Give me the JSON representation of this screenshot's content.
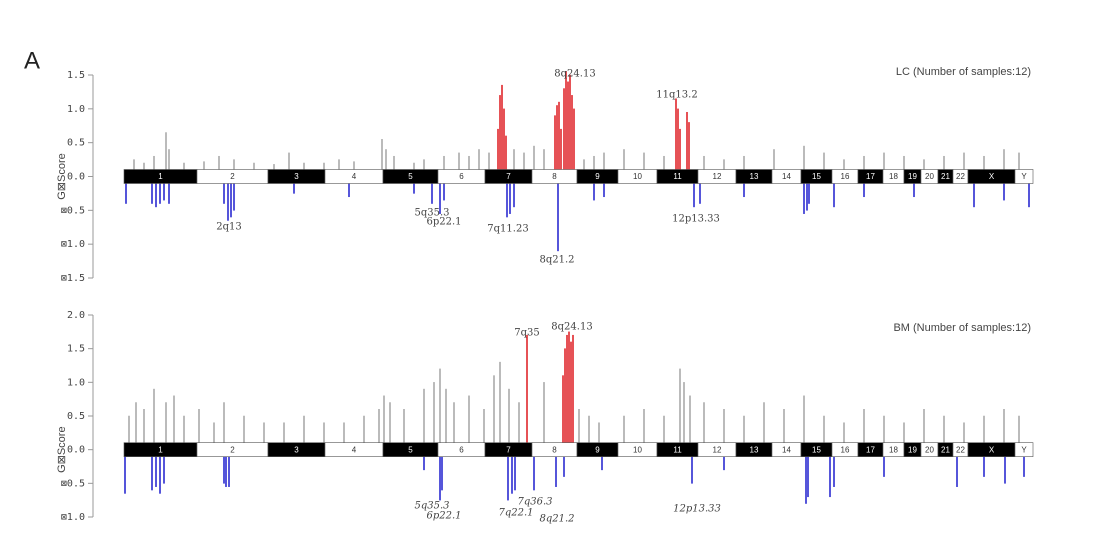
{
  "panel_label": "A",
  "chart_data": [
    {
      "type": "genome-bar",
      "title": "LC (Number of samples:12)",
      "y_label": "G⊠Score",
      "ylim": [
        -1.5,
        1.5
      ],
      "yticks": [
        {
          "value": 1.5,
          "label": "1.5"
        },
        {
          "value": 1,
          "label": "1.0"
        },
        {
          "value": 0.5,
          "label": "0.5"
        },
        {
          "value": 0,
          "label": "0.0"
        },
        {
          "value": -0.5,
          "label": "⊠0.5"
        },
        {
          "value": -1,
          "label": "⊠1.0"
        },
        {
          "value": -1.5,
          "label": "⊠1.5"
        }
      ],
      "xlim": [
        0,
        909
      ],
      "chromosomes": [
        "1",
        "2",
        "3",
        "4",
        "5",
        "6",
        "7",
        "8",
        "9",
        "10",
        "11",
        "12",
        "13",
        "14",
        "15",
        "16",
        "17",
        "18",
        "19",
        "20",
        "21",
        "22",
        "X",
        "Y"
      ],
      "chromosome_edges": [
        0,
        73,
        144,
        201,
        259,
        314,
        361,
        408,
        453,
        494,
        533,
        574,
        612,
        648,
        677,
        708,
        734,
        759,
        780,
        797,
        814,
        829,
        844,
        891,
        909
      ],
      "annotations": [
        "8q24.13",
        "11q13.2",
        "2q13",
        "5q35.3",
        "6p22.1",
        "7q11.23",
        "8q21.2",
        "12p13.33"
      ],
      "series": [
        {
          "color": "#aaaaaa",
          "x": [
            10,
            20,
            30,
            42,
            45,
            60,
            80,
            95,
            110,
            130,
            150,
            165,
            180,
            200,
            215,
            230,
            258,
            262,
            270,
            290,
            300,
            320,
            335,
            345,
            355,
            365,
            390,
            400,
            410,
            420,
            460,
            470,
            480,
            500,
            520,
            540,
            580,
            600,
            620,
            650,
            680,
            700,
            720,
            740,
            760,
            780,
            800,
            820,
            840,
            860,
            880,
            895
          ],
          "values": [
            0.15,
            0.1,
            0.2,
            0.55,
            0.3,
            0.1,
            0.12,
            0.2,
            0.15,
            0.1,
            0.08,
            0.25,
            0.1,
            0.1,
            0.15,
            0.12,
            0.45,
            0.3,
            0.2,
            0.1,
            0.15,
            0.2,
            0.25,
            0.2,
            0.3,
            0.25,
            0.3,
            0.25,
            0.35,
            0.3,
            0.15,
            0.2,
            0.25,
            0.3,
            0.25,
            0.2,
            0.2,
            0.15,
            0.2,
            0.3,
            0.35,
            0.25,
            0.15,
            0.2,
            0.25,
            0.2,
            0.15,
            0.2,
            0.25,
            0.2,
            0.3,
            0.25
          ]
        },
        {
          "color": "#e0262b",
          "x": [
            374,
            376,
            378,
            380,
            382,
            431,
            433,
            435,
            437,
            440,
            442,
            444,
            446,
            448,
            450,
            552,
            554,
            556,
            563,
            565
          ],
          "values": [
            0.6,
            1.1,
            1.25,
            0.9,
            0.5,
            0.8,
            0.95,
            1.0,
            0.6,
            1.2,
            1.45,
            1.3,
            1.4,
            1.1,
            0.9,
            1.05,
            0.9,
            0.6,
            0.85,
            0.7
          ]
        },
        {
          "color": "#2b2bd0",
          "x": [
            2,
            28,
            32,
            36,
            40,
            45,
            100,
            104,
            107,
            110,
            170,
            225,
            290,
            308,
            316,
            320,
            383,
            386,
            390,
            434,
            470,
            480,
            570,
            576,
            620,
            680,
            683,
            685,
            710,
            740,
            790,
            850,
            880,
            905
          ],
          "values": [
            -0.3,
            -0.3,
            -0.35,
            -0.3,
            -0.25,
            -0.3,
            -0.3,
            -0.55,
            -0.5,
            -0.4,
            -0.15,
            -0.2,
            -0.15,
            -0.3,
            -0.45,
            -0.25,
            -0.5,
            -0.45,
            -0.35,
            -1.0,
            -0.25,
            -0.2,
            -0.35,
            -0.3,
            -0.2,
            -0.45,
            -0.4,
            -0.3,
            -0.35,
            -0.2,
            -0.2,
            -0.35,
            -0.25,
            -0.35
          ]
        }
      ]
    },
    {
      "type": "genome-bar",
      "title": "BM (Number of samples:12)",
      "y_label": "G⊠Score",
      "ylim": [
        -1,
        2
      ],
      "yticks": [
        {
          "value": 2,
          "label": "2.0"
        },
        {
          "value": 1.5,
          "label": "1.5"
        },
        {
          "value": 1,
          "label": "1.0"
        },
        {
          "value": 0.5,
          "label": "0.5"
        },
        {
          "value": 0,
          "label": "0.0"
        },
        {
          "value": -0.5,
          "label": "⊠0.5"
        },
        {
          "value": -1,
          "label": "⊠1.0"
        }
      ],
      "xlim": [
        0,
        909
      ],
      "chromosomes": [
        "1",
        "2",
        "3",
        "4",
        "5",
        "6",
        "7",
        "8",
        "9",
        "10",
        "11",
        "12",
        "13",
        "14",
        "15",
        "16",
        "17",
        "18",
        "19",
        "20",
        "21",
        "22",
        "X",
        "Y"
      ],
      "chromosome_edges": [
        0,
        73,
        144,
        201,
        259,
        314,
        361,
        408,
        453,
        494,
        533,
        574,
        612,
        648,
        677,
        708,
        734,
        759,
        780,
        797,
        814,
        829,
        844,
        891,
        909
      ],
      "annotations": [
        "7q35",
        "8q24.13",
        "5q35.3",
        "6p22.1",
        "7q36.3",
        "7q22.1",
        "8q21.2",
        "12p13.33"
      ],
      "series": [
        {
          "color": "#aaaaaa",
          "x": [
            5,
            12,
            20,
            30,
            42,
            50,
            60,
            75,
            90,
            100,
            120,
            140,
            160,
            180,
            200,
            220,
            240,
            255,
            260,
            266,
            280,
            300,
            310,
            316,
            322,
            330,
            345,
            360,
            370,
            376,
            385,
            395,
            420,
            455,
            465,
            475,
            500,
            520,
            540,
            556,
            560,
            566,
            580,
            600,
            620,
            640,
            660,
            680,
            700,
            720,
            740,
            760,
            780,
            800,
            820,
            840,
            860,
            880,
            895
          ],
          "values": [
            0.4,
            0.6,
            0.5,
            0.8,
            0.6,
            0.7,
            0.4,
            0.5,
            0.3,
            0.6,
            0.4,
            0.3,
            0.3,
            0.4,
            0.3,
            0.3,
            0.4,
            0.5,
            0.7,
            0.6,
            0.5,
            0.8,
            0.9,
            1.1,
            0.8,
            0.6,
            0.7,
            0.5,
            1.0,
            1.2,
            0.8,
            0.6,
            0.9,
            0.5,
            0.4,
            0.3,
            0.4,
            0.5,
            0.4,
            1.1,
            0.9,
            0.7,
            0.6,
            0.5,
            0.4,
            0.6,
            0.5,
            0.7,
            0.4,
            0.3,
            0.5,
            0.4,
            0.3,
            0.5,
            0.4,
            0.3,
            0.4,
            0.5,
            0.4
          ]
        },
        {
          "color": "#e0262b",
          "x": [
            403,
            439,
            441,
            443,
            445,
            447,
            449
          ],
          "values": [
            1.6,
            1.0,
            1.4,
            1.6,
            1.65,
            1.5,
            1.6
          ]
        },
        {
          "color": "#2b2bd0",
          "x": [
            1,
            28,
            32,
            36,
            40,
            100,
            102,
            105,
            300,
            316,
            318,
            384,
            388,
            391,
            410,
            432,
            440,
            478,
            568,
            600,
            682,
            684,
            706,
            710,
            760,
            833,
            860,
            881,
            900
          ],
          "values": [
            -0.55,
            -0.5,
            -0.45,
            -0.55,
            -0.4,
            -0.4,
            -0.45,
            -0.45,
            -0.2,
            -0.65,
            -0.5,
            -0.65,
            -0.55,
            -0.5,
            -0.5,
            -0.45,
            -0.3,
            -0.2,
            -0.4,
            -0.2,
            -0.7,
            -0.6,
            -0.6,
            -0.45,
            -0.3,
            -0.45,
            -0.3,
            -0.4,
            -0.3
          ]
        }
      ]
    }
  ]
}
